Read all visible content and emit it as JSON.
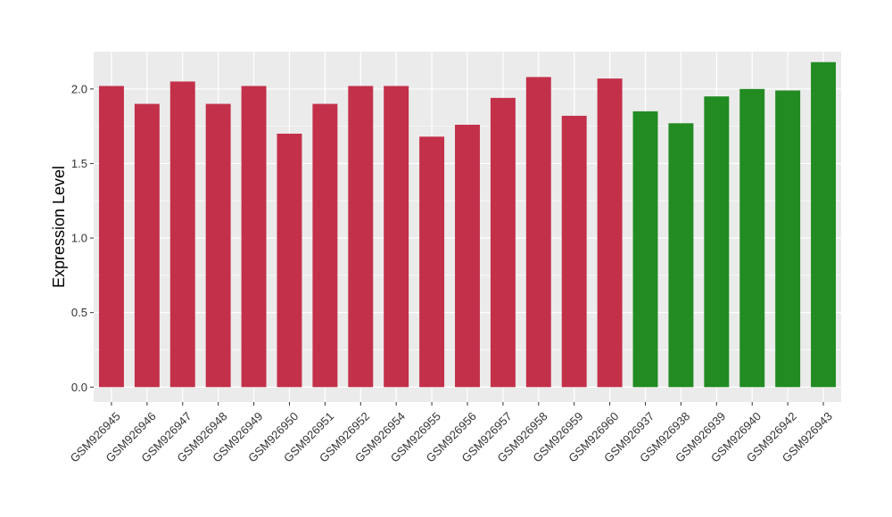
{
  "chart_data": {
    "type": "bar",
    "ylabel": "Expression Level",
    "xlabel": "",
    "title": "",
    "ylim": [
      -0.1,
      2.25
    ],
    "yticks": [
      0.0,
      0.5,
      1.0,
      1.5,
      2.0
    ],
    "ytick_labels": [
      "0.0",
      "0.5",
      "1.0",
      "1.5",
      "2.0"
    ],
    "grid": true,
    "panel_background": "#ebebeb",
    "categories": [
      "GSM926945",
      "GSM926946",
      "GSM926947",
      "GSM926948",
      "GSM926949",
      "GSM926950",
      "GSM926951",
      "GSM926952",
      "GSM926954",
      "GSM926955",
      "GSM926956",
      "GSM926957",
      "GSM926958",
      "GSM926959",
      "GSM926960",
      "GSM926937",
      "GSM926938",
      "GSM926939",
      "GSM926940",
      "GSM926942",
      "GSM926943"
    ],
    "values": [
      2.02,
      1.9,
      2.05,
      1.9,
      2.02,
      1.7,
      1.9,
      2.02,
      2.02,
      1.68,
      1.76,
      1.94,
      2.08,
      1.82,
      2.07,
      1.85,
      1.77,
      1.95,
      2.0,
      1.99,
      2.18
    ],
    "bar_colors": [
      "#c3304a",
      "#c3304a",
      "#c3304a",
      "#c3304a",
      "#c3304a",
      "#c3304a",
      "#c3304a",
      "#c3304a",
      "#c3304a",
      "#c3304a",
      "#c3304a",
      "#c3304a",
      "#c3304a",
      "#c3304a",
      "#c3304a",
      "#228b22",
      "#228b22",
      "#228b22",
      "#228b22",
      "#228b22",
      "#228b22"
    ]
  }
}
